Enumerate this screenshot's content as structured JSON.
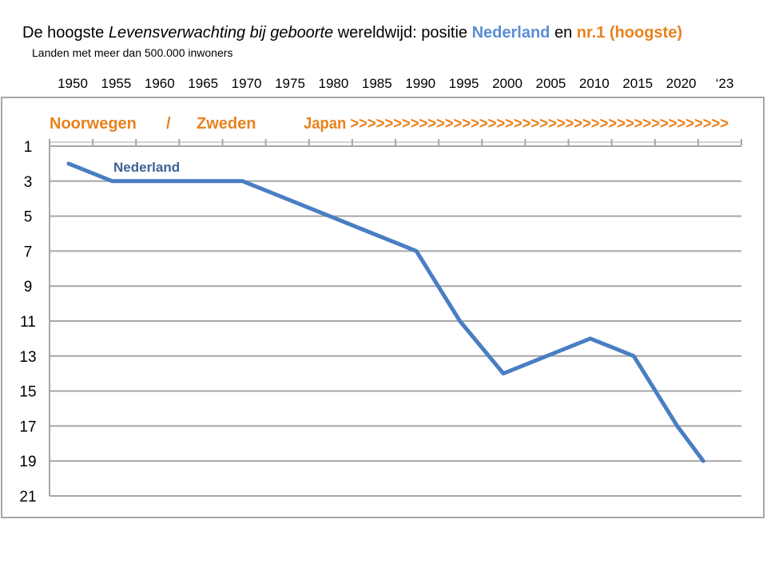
{
  "title": {
    "part1": "De hoogste ",
    "part2_italic": "Levensverwachting bij geboorte",
    "part3": " wereldwijd: positie ",
    "part4_blue": "Nederland",
    "part5": " en ",
    "part6_orange": "nr.1 (hoogste)"
  },
  "subtitle": "Landen met meer dan 500.000 inwoners",
  "colors": {
    "line": "#4A7EC2",
    "leader_label": "#E8821E",
    "series_label": "#3B6496",
    "grid": "#A6A6A6",
    "frame": "#A6A6A6"
  },
  "leaders": {
    "label1": "Noorwegen",
    "sep": "/",
    "label2": "Zweden",
    "label3": "Japan >>>>>>>>>>>>>>>>>>>>>>>>>>>>>>>>>>>>>>>>>>>>"
  },
  "chart_data": {
    "type": "line",
    "x_tick_labels": [
      "1950",
      "1955",
      "1960",
      "1965",
      "1970",
      "1975",
      "1980",
      "1985",
      "1990",
      "1995",
      "2000",
      "2005",
      "2010",
      "2015",
      "2020",
      "‘23"
    ],
    "y_tick_labels": [
      "1",
      "3",
      "5",
      "7",
      "9",
      "11",
      "13",
      "15",
      "17",
      "19",
      "21"
    ],
    "ylim": [
      1,
      21
    ],
    "y_inverted": true,
    "grid": true,
    "series": [
      {
        "name": "Nederland",
        "x": [
          1950,
          1955,
          1960,
          1965,
          1970,
          1975,
          1980,
          1985,
          1990,
          1995,
          2000,
          2005,
          2010,
          2015,
          2020,
          2023
        ],
        "y": [
          2,
          3,
          3,
          3,
          3,
          4,
          5,
          6,
          7,
          11,
          14,
          13,
          12,
          13,
          17,
          19
        ]
      }
    ]
  }
}
